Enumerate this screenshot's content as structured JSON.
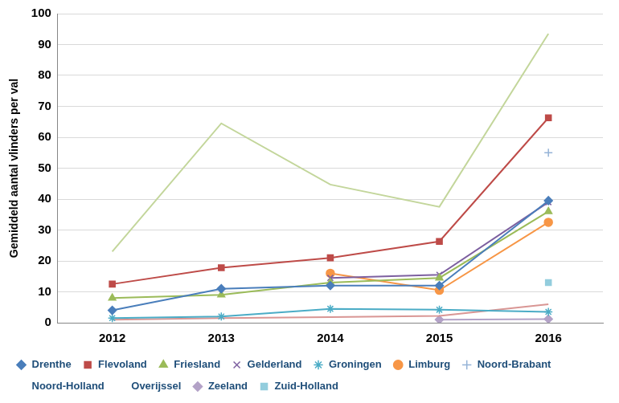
{
  "chart_data": {
    "type": "line",
    "y_label": "Gemiddeld aantal vlinders per val",
    "categories": [
      "2012",
      "2013",
      "2014",
      "2015",
      "2016"
    ],
    "ylim": [
      0,
      100
    ],
    "yticks": [
      0,
      10,
      20,
      30,
      40,
      50,
      60,
      70,
      80,
      90,
      100
    ],
    "grid": true,
    "legend": "bottom",
    "series": [
      {
        "name": "Drenthe",
        "color": "#4a7ebb",
        "marker": "diamond",
        "values": [
          4,
          11,
          12,
          12,
          39.5
        ]
      },
      {
        "name": "Flevoland",
        "color": "#be4b48",
        "marker": "square",
        "values": [
          12.5,
          17.8,
          21,
          26.3,
          66.3
        ]
      },
      {
        "name": "Friesland",
        "color": "#9bbb59",
        "marker": "triangle",
        "values": [
          8,
          9,
          13,
          14.5,
          36
        ]
      },
      {
        "name": "Gelderland",
        "color": "#7d60a0",
        "marker": "x",
        "values": [
          null,
          null,
          14.5,
          15.5,
          39
        ]
      },
      {
        "name": "Groningen",
        "color": "#4bacc6",
        "marker": "star",
        "values": [
          1.5,
          2,
          4.5,
          4.2,
          3.5
        ]
      },
      {
        "name": "Limburg",
        "color": "#f79646",
        "marker": "circle",
        "values": [
          null,
          null,
          16,
          10.5,
          32.5
        ]
      },
      {
        "name": "Noord-Brabant",
        "color": "#95b3d7",
        "marker": "plus",
        "values": [
          null,
          null,
          null,
          null,
          55
        ]
      },
      {
        "name": "Noord-Holland",
        "color": "#d99694",
        "marker": "none",
        "values": [
          1,
          1.5,
          1.8,
          2.2,
          6
        ]
      },
      {
        "name": "Overijssel",
        "color": "#c3d69b",
        "marker": "none",
        "values": [
          23,
          64.5,
          44.7,
          37.5,
          93.5
        ]
      },
      {
        "name": "Zeeland",
        "color": "#b3a2c7",
        "marker": "diamond",
        "values": [
          null,
          null,
          null,
          1,
          1.2
        ]
      },
      {
        "name": "Zuid-Holland",
        "color": "#93cddd",
        "marker": "square",
        "values": [
          null,
          null,
          null,
          null,
          13
        ]
      }
    ]
  }
}
